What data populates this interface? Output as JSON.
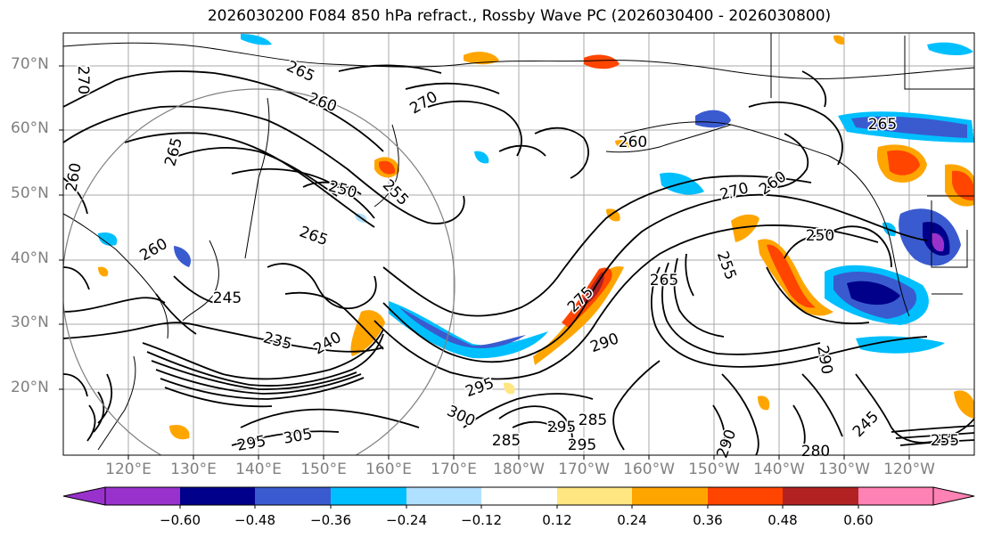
{
  "title": "2026030200 F084 850 hPa refract., Rossby Wave PC (2026030400 - 2026030800)",
  "lat_labels": [
    "70°N",
    "60°N",
    "50°N",
    "40°N",
    "30°N",
    "20°N"
  ],
  "lon_labels": [
    "120°E",
    "130°E",
    "140°E",
    "150°E",
    "160°E",
    "170°E",
    "180°W",
    "170°W",
    "160°W",
    "150°W",
    "140°W",
    "130°W",
    "120°W"
  ],
  "contour_labels": [
    "270",
    "265",
    "260",
    "270",
    "260",
    "265",
    "250",
    "255",
    "260",
    "270",
    "260",
    "265",
    "250",
    "255",
    "265",
    "260",
    "245",
    "235",
    "240",
    "275",
    "265",
    "290",
    "295",
    "300",
    "305",
    "295",
    "285",
    "295",
    "285",
    "295",
    "290",
    "280",
    "245",
    "290",
    "255"
  ],
  "colorbar": {
    "ticks": [
      "−0.60",
      "−0.48",
      "−0.36",
      "−0.24",
      "−0.12",
      "0.12",
      "0.24",
      "0.36",
      "0.48",
      "0.60"
    ],
    "colors": [
      "#9932cc",
      "#00008b",
      "#3a5bcf",
      "#00bfff",
      "#b0e0ff",
      "#ffffff",
      "#ffe680",
      "#ffa500",
      "#ff4500",
      "#b22222",
      "#ff82b4"
    ]
  }
}
